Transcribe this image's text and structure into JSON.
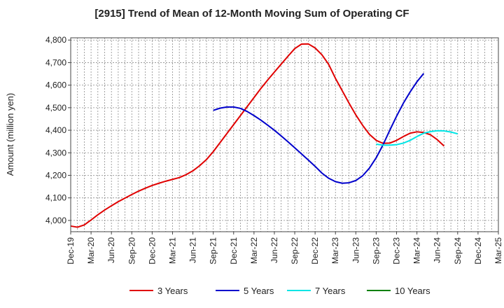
{
  "chart_data": {
    "type": "line",
    "title": "[2915]  Trend of Mean of 12-Month Moving Sum of Operating CF",
    "xlabel": "",
    "ylabel": "Amount (million yen)",
    "ylim": [
      3950,
      4810
    ],
    "yticks": [
      4000,
      4100,
      4200,
      4300,
      4400,
      4500,
      4600,
      4700,
      4800
    ],
    "ytick_labels": [
      "4,000",
      "4,100",
      "4,200",
      "4,300",
      "4,400",
      "4,500",
      "4,600",
      "4,700",
      "4,800"
    ],
    "x_start": "Dec-19",
    "x_months": 63,
    "xtick_labels": [
      "Dec-19",
      "Mar-20",
      "Jun-20",
      "Sep-20",
      "Dec-20",
      "Mar-21",
      "Jun-21",
      "Sep-21",
      "Dec-21",
      "Mar-22",
      "Jun-22",
      "Sep-22",
      "Dec-22",
      "Mar-23",
      "Jun-23",
      "Sep-23",
      "Dec-23",
      "Mar-24",
      "Jun-24",
      "Sep-24",
      "Dec-24",
      "Mar-25"
    ],
    "grid": true,
    "legend_position": "bottom",
    "series": [
      {
        "name": "3 Years",
        "color": "#e00000",
        "start_index": 0,
        "values": [
          3975,
          3970,
          3980,
          4002,
          4025,
          4046,
          4065,
          4083,
          4099,
          4115,
          4130,
          4143,
          4155,
          4165,
          4174,
          4182,
          4190,
          4203,
          4220,
          4243,
          4270,
          4305,
          4345,
          4385,
          4425,
          4465,
          4505,
          4545,
          4585,
          4622,
          4658,
          4693,
          4728,
          4762,
          4782,
          4783,
          4765,
          4735,
          4692,
          4630,
          4575,
          4520,
          4468,
          4422,
          4382,
          4355,
          4342,
          4343,
          4355,
          4372,
          4387,
          4393,
          4390,
          4380,
          4358,
          4330
        ]
      },
      {
        "name": "5 Years",
        "color": "#0000cc",
        "start_index": 21,
        "values": [
          4488,
          4498,
          4503,
          4503,
          4497,
          4483,
          4465,
          4445,
          4423,
          4400,
          4375,
          4349,
          4322,
          4295,
          4268,
          4240,
          4210,
          4187,
          4172,
          4165,
          4167,
          4177,
          4198,
          4232,
          4278,
          4335,
          4400,
          4462,
          4520,
          4570,
          4615,
          4652
        ]
      },
      {
        "name": "7 Years",
        "color": "#00e5e5",
        "start_index": 45,
        "values": [
          4338,
          4334,
          4334,
          4336,
          4343,
          4355,
          4372,
          4387,
          4394,
          4398,
          4397,
          4392,
          4384
        ]
      },
      {
        "name": "10 Years",
        "color": "#008000",
        "start_index": 0,
        "values": []
      }
    ]
  }
}
